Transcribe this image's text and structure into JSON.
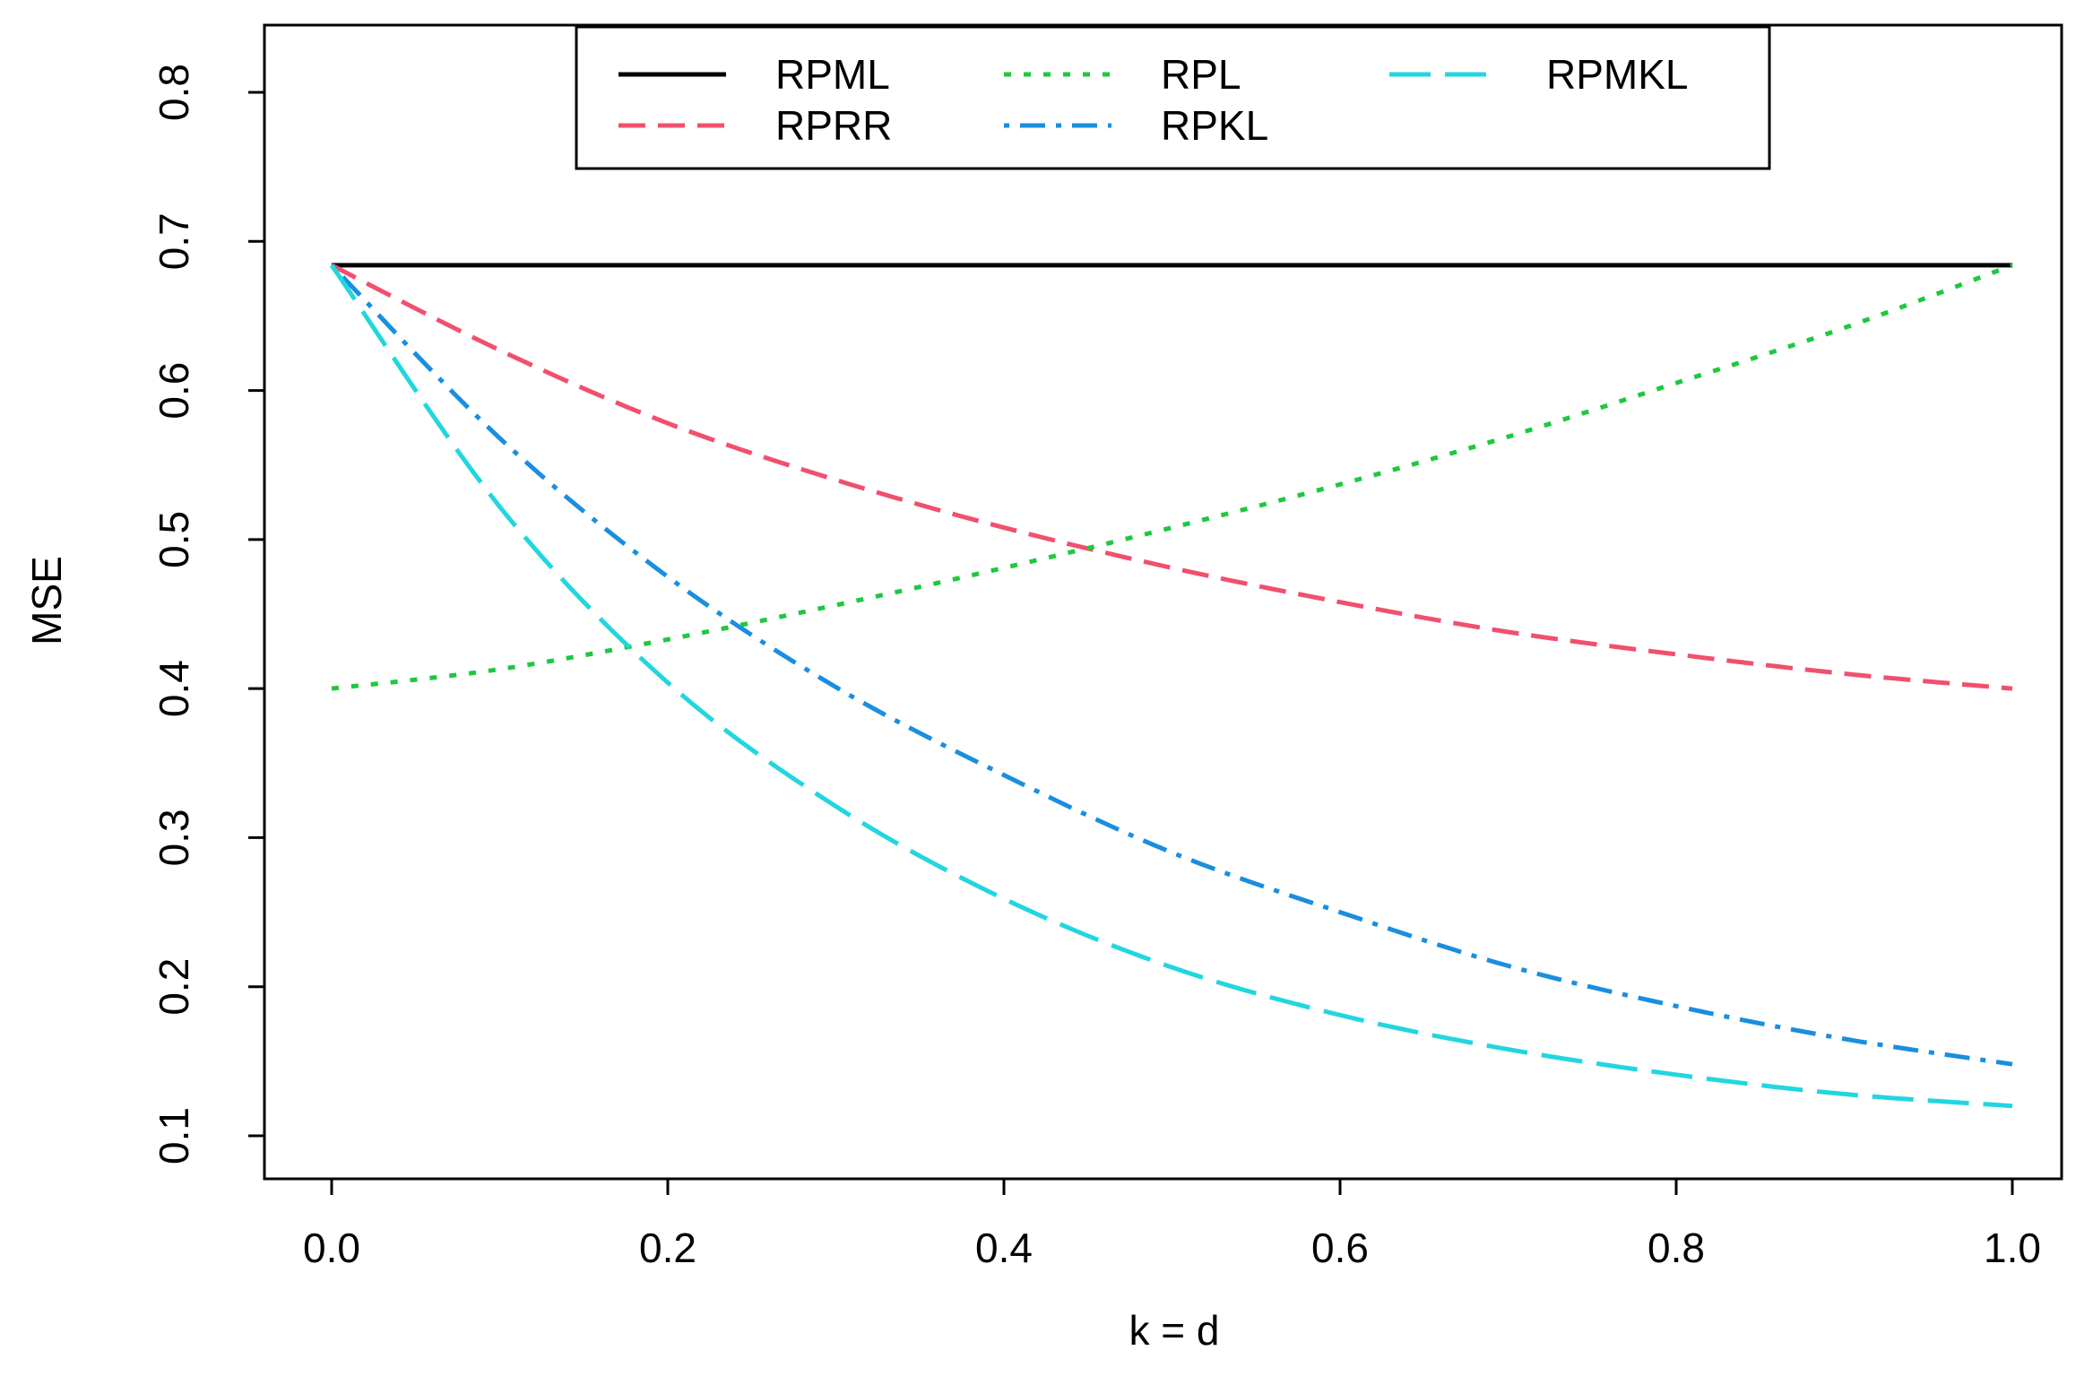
{
  "chart_data": {
    "type": "line",
    "title": "",
    "xlabel": "k = d",
    "ylabel": "MSE",
    "xlim": [
      0.0,
      1.0
    ],
    "ylim": [
      0.08,
      0.84
    ],
    "x_ticks": [
      0.0,
      0.2,
      0.4,
      0.6,
      0.8,
      1.0
    ],
    "x_tick_labels": [
      "0.0",
      "0.2",
      "0.4",
      "0.6",
      "0.8",
      "1.0"
    ],
    "y_ticks": [
      0.1,
      0.2,
      0.3,
      0.4,
      0.5,
      0.6,
      0.7,
      0.8
    ],
    "y_tick_labels": [
      "0.1",
      "0.2",
      "0.3",
      "0.4",
      "0.5",
      "0.6",
      "0.7",
      "0.8"
    ],
    "grid": false,
    "legend_position": "top-center",
    "x": [
      0.0,
      0.1,
      0.2,
      0.3,
      0.4,
      0.5,
      0.6,
      0.7,
      0.8,
      0.9,
      1.0
    ],
    "series": [
      {
        "name": "RPML",
        "color": "#000000",
        "dash": "solid",
        "values": [
          0.684,
          0.684,
          0.684,
          0.684,
          0.684,
          0.684,
          0.684,
          0.684,
          0.684,
          0.684,
          0.684
        ]
      },
      {
        "name": "RPRR",
        "color": "#f0506e",
        "dash": "dashed",
        "values": [
          0.684,
          0.627,
          0.578,
          0.54,
          0.508,
          0.481,
          0.458,
          0.438,
          0.423,
          0.41,
          0.4
        ]
      },
      {
        "name": "RPL",
        "color": "#1ec840",
        "dash": "dotted",
        "values": [
          0.4,
          0.413,
          0.433,
          0.456,
          0.481,
          0.508,
          0.537,
          0.569,
          0.605,
          0.642,
          0.684
        ]
      },
      {
        "name": "RPKL",
        "color": "#1a8ee0",
        "dash": "dotdash",
        "values": [
          0.684,
          0.568,
          0.475,
          0.401,
          0.342,
          0.29,
          0.25,
          0.214,
          0.187,
          0.165,
          0.148
        ]
      },
      {
        "name": "RPMKL",
        "color": "#22d6e0",
        "dash": "longdash",
        "values": [
          0.684,
          0.522,
          0.404,
          0.321,
          0.259,
          0.213,
          0.181,
          0.158,
          0.141,
          0.128,
          0.12
        ]
      }
    ]
  }
}
